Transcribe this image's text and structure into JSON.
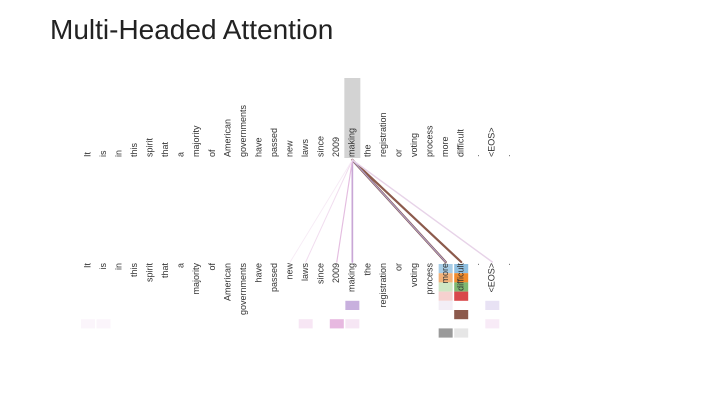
{
  "title": "Multi-Headed Attention",
  "tokens": [
    "It",
    "is",
    "in",
    "this",
    "spirit",
    "that",
    "a",
    "majority",
    "of",
    "American",
    "governments",
    "have",
    "passed",
    "new",
    "laws",
    "since",
    "2009",
    "making",
    "the",
    "registration",
    "or",
    "voting",
    "process",
    "more",
    "difficult",
    ".",
    "<EOS>",
    "."
  ],
  "query_token_index": 17,
  "highlight_color": "#d3d3d3",
  "attention_links": [
    {
      "target_index": 23,
      "color": "#7b4a3e",
      "weight": 0.95
    },
    {
      "target_index": 24,
      "color": "#8c5a4c",
      "weight": 0.9
    },
    {
      "target_index": 23,
      "color": "#b0a0c8",
      "weight": 0.35
    },
    {
      "target_index": 26,
      "color": "#e7d3e8",
      "weight": 0.45
    },
    {
      "target_index": 17,
      "color": "#c9a6d6",
      "weight": 0.6
    },
    {
      "target_index": 16,
      "color": "#e4bde0",
      "weight": 0.3
    },
    {
      "target_index": 14,
      "color": "#f1dcef",
      "weight": 0.2
    },
    {
      "target_index": 13,
      "color": "#f6eaf5",
      "weight": 0.12
    }
  ],
  "head_cells": [
    {
      "col": 23,
      "row": 0,
      "color": "#a8cde6"
    },
    {
      "col": 24,
      "row": 0,
      "color": "#8fbfe0"
    },
    {
      "col": 23,
      "row": 1,
      "color": "#f3b27a"
    },
    {
      "col": 24,
      "row": 1,
      "color": "#f08a2c"
    },
    {
      "col": 23,
      "row": 2,
      "color": "#cfe7c4"
    },
    {
      "col": 24,
      "row": 2,
      "color": "#7fb870"
    },
    {
      "col": 23,
      "row": 3,
      "color": "#f6d1cf"
    },
    {
      "col": 24,
      "row": 3,
      "color": "#d9484a"
    },
    {
      "col": 17,
      "row": 4,
      "color": "#c8b0de"
    },
    {
      "col": 23,
      "row": 4,
      "color": "#f3eef6"
    },
    {
      "col": 26,
      "row": 4,
      "color": "#e8e2f4"
    },
    {
      "col": 24,
      "row": 5,
      "color": "#8c5a4c"
    },
    {
      "col": 0,
      "row": 6,
      "color": "#fbf5fb"
    },
    {
      "col": 1,
      "row": 6,
      "color": "#fbf5fb"
    },
    {
      "col": 14,
      "row": 6,
      "color": "#f7e6f4"
    },
    {
      "col": 16,
      "row": 6,
      "color": "#e7b8e0"
    },
    {
      "col": 17,
      "row": 6,
      "color": "#f6e6f4"
    },
    {
      "col": 26,
      "row": 6,
      "color": "#f8ebf7"
    },
    {
      "col": 23,
      "row": 7,
      "color": "#9a9a9a"
    },
    {
      "col": 24,
      "row": 7,
      "color": "#e6e6e6"
    }
  ]
}
